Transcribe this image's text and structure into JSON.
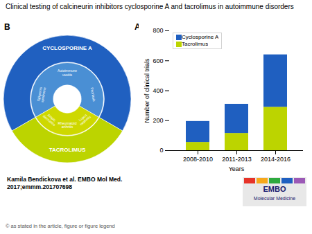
{
  "chart_data": [
    {
      "type": "bar",
      "title": "Clinical testing of calcineurin inhibitors cyclosporine A and tacrolimus in autoimmune disorders",
      "panel_label": "A",
      "stacked": true,
      "categories": [
        "2008-2010",
        "2011-2013",
        "2014-2016"
      ],
      "series": [
        {
          "name": "Tacrolimus",
          "color": "#bcd400",
          "values": [
            55,
            115,
            290
          ]
        },
        {
          "name": "Cyclosporine A",
          "color": "#1f5fc0",
          "values": [
            140,
            195,
            350
          ]
        }
      ],
      "xlabel": "Years",
      "ylabel": "Number of clinical trials",
      "ylim": [
        0,
        800
      ],
      "yticks": [
        0,
        200,
        400,
        600,
        800
      ],
      "legend": "upper left"
    },
    {
      "type": "donut",
      "panel_label": "B",
      "series": [
        {
          "name": "CYCLOSPORINE A",
          "color": "#2060c0",
          "inner_color": "#4a8fd4",
          "categories": [
            "Sjögren's syndrome",
            "Autoimmune uveitis",
            "Psoriasis"
          ]
        },
        {
          "name": "TACROLIMUS",
          "color": "#bcd400",
          "inner_color": "#ced800",
          "categories": [
            "Lupus nephritis",
            "Rheumatoid arthritis",
            "Atopic dermatitis"
          ]
        }
      ]
    }
  ],
  "annotations": [
    "Kamila Bendickova et al. EMBO Mol Med.\n2017;emmm.201707698",
    "© as stated in the article, figure or figure legend",
    "EMBO",
    "Molecular Medicine"
  ]
}
